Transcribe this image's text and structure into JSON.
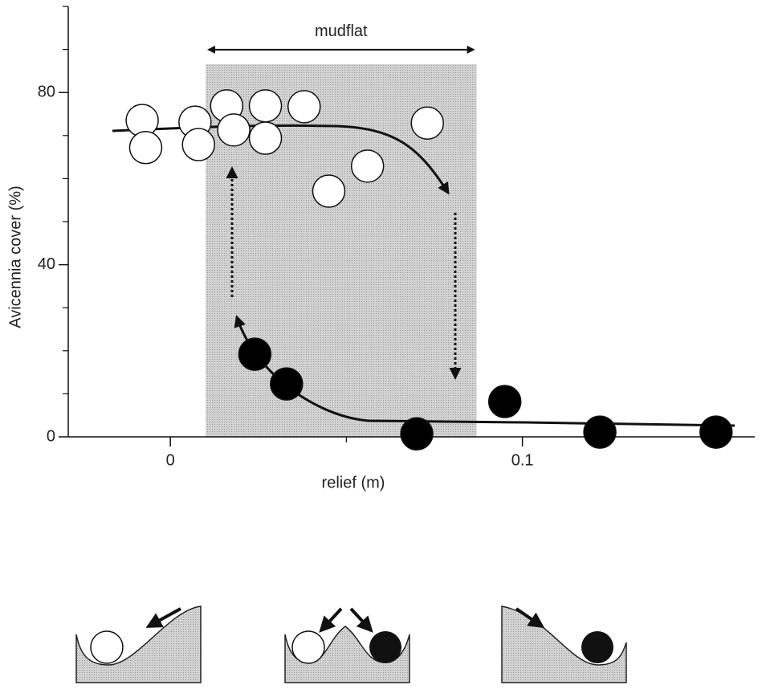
{
  "chart_data": {
    "type": "scatter",
    "xlabel": "relief (m)",
    "ylabel": "Avicennia cover (%)",
    "xlim": [
      -0.029,
      0.166
    ],
    "xticks": [
      0,
      0.1
    ],
    "xminorticks": [
      0.05
    ],
    "ylim": [
      0,
      100
    ],
    "yticks": [
      0,
      40,
      80
    ],
    "yminorticks": [
      10,
      20,
      30,
      50,
      60,
      70,
      90,
      100
    ],
    "region": {
      "label": "mudflat",
      "x": [
        0.01,
        0.087
      ],
      "top": 86.6
    },
    "series": [
      {
        "color": "#ffffff",
        "x": [
          -0.008,
          -0.007,
          0.007,
          0.008,
          0.016,
          0.018,
          0.027,
          0.027,
          0.038,
          0.045,
          0.056,
          0.073
        ],
        "values": [
          73.5,
          67.2,
          73.1,
          67.9,
          76.9,
          71.3,
          76.9,
          69.4,
          76.7,
          57.1,
          62.9,
          72.9
        ]
      },
      {
        "color": "#000000",
        "x": [
          0.024,
          0.033,
          0.07,
          0.095,
          0.122,
          0.155
        ],
        "values": [
          19.2,
          12.3,
          0.7,
          8.2,
          1.1,
          1.1
        ]
      }
    ]
  }
}
